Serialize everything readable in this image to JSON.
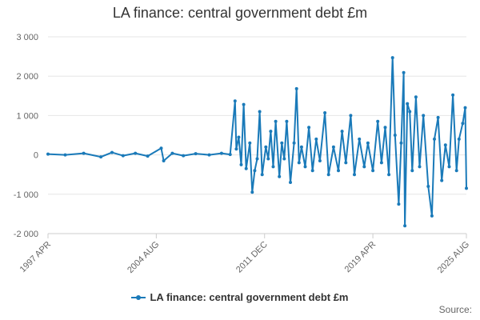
{
  "chart_data": {
    "type": "line",
    "title": "LA finance: central government debt £m",
    "xlabel": "",
    "ylabel": "",
    "x_range": [
      "1997-04",
      "2025-08"
    ],
    "x_ticks": [
      "1997 APR",
      "2004 AUG",
      "2011 DEC",
      "2019 APR",
      "2025 AUG"
    ],
    "ylim": [
      -2000,
      3000
    ],
    "y_ticks": [
      -2000,
      -1000,
      0,
      1000,
      2000,
      3000
    ],
    "y_tick_labels": [
      "-2 000",
      "-1 000",
      "0",
      "1 000",
      "2 000",
      "3 000"
    ],
    "grid": "horizontal",
    "legend": "bottom",
    "series": [
      {
        "name": "LA finance: central government debt £m",
        "color": "#1a7ab9",
        "points": [
          [
            "1997-04",
            20
          ],
          [
            "1998-06",
            0
          ],
          [
            "1999-09",
            40
          ],
          [
            "2000-11",
            -50
          ],
          [
            "2001-08",
            60
          ],
          [
            "2002-05",
            -20
          ],
          [
            "2003-03",
            40
          ],
          [
            "2004-01",
            -30
          ],
          [
            "2004-12",
            170
          ],
          [
            "2005-02",
            -150
          ],
          [
            "2005-09",
            40
          ],
          [
            "2006-06",
            -20
          ],
          [
            "2007-04",
            30
          ],
          [
            "2008-03",
            0
          ],
          [
            "2009-01",
            40
          ],
          [
            "2009-08",
            10
          ],
          [
            "2009-12",
            1370
          ],
          [
            "2010-01",
            150
          ],
          [
            "2010-03",
            450
          ],
          [
            "2010-05",
            -250
          ],
          [
            "2010-07",
            1280
          ],
          [
            "2010-09",
            -350
          ],
          [
            "2010-12",
            300
          ],
          [
            "2011-02",
            -950
          ],
          [
            "2011-04",
            -400
          ],
          [
            "2011-06",
            -100
          ],
          [
            "2011-08",
            1100
          ],
          [
            "2011-10",
            -500
          ],
          [
            "2012-01",
            200
          ],
          [
            "2012-03",
            -100
          ],
          [
            "2012-05",
            600
          ],
          [
            "2012-07",
            -300
          ],
          [
            "2012-09",
            850
          ],
          [
            "2012-12",
            -550
          ],
          [
            "2013-02",
            300
          ],
          [
            "2013-04",
            -100
          ],
          [
            "2013-06",
            850
          ],
          [
            "2013-09",
            -700
          ],
          [
            "2013-12",
            300
          ],
          [
            "2014-02",
            1680
          ],
          [
            "2014-04",
            -200
          ],
          [
            "2014-06",
            200
          ],
          [
            "2014-09",
            -300
          ],
          [
            "2014-12",
            700
          ],
          [
            "2015-03",
            -400
          ],
          [
            "2015-06",
            400
          ],
          [
            "2015-09",
            -150
          ],
          [
            "2016-01",
            1070
          ],
          [
            "2016-04",
            -500
          ],
          [
            "2016-08",
            200
          ],
          [
            "2016-12",
            -400
          ],
          [
            "2017-03",
            600
          ],
          [
            "2017-06",
            -200
          ],
          [
            "2017-10",
            1000
          ],
          [
            "2018-01",
            -500
          ],
          [
            "2018-05",
            400
          ],
          [
            "2018-09",
            -300
          ],
          [
            "2018-12",
            300
          ],
          [
            "2019-04",
            -400
          ],
          [
            "2019-08",
            850
          ],
          [
            "2019-11",
            -200
          ],
          [
            "2020-02",
            700
          ],
          [
            "2020-05",
            -500
          ],
          [
            "2020-08",
            2470
          ],
          [
            "2020-10",
            500
          ],
          [
            "2021-01",
            -1250
          ],
          [
            "2021-03",
            300
          ],
          [
            "2021-05",
            2090
          ],
          [
            "2021-06",
            -1800
          ],
          [
            "2021-08",
            1300
          ],
          [
            "2021-10",
            1100
          ],
          [
            "2021-12",
            -400
          ],
          [
            "2022-03",
            1470
          ],
          [
            "2022-06",
            -300
          ],
          [
            "2022-09",
            1000
          ],
          [
            "2023-01",
            -800
          ],
          [
            "2023-04",
            -1550
          ],
          [
            "2023-06",
            400
          ],
          [
            "2023-09",
            950
          ],
          [
            "2023-12",
            -650
          ],
          [
            "2024-03",
            250
          ],
          [
            "2024-06",
            -300
          ],
          [
            "2024-09",
            1520
          ],
          [
            "2024-12",
            -400
          ],
          [
            "2025-02",
            400
          ],
          [
            "2025-05",
            800
          ],
          [
            "2025-07",
            1200
          ],
          [
            "2025-08",
            -850
          ]
        ]
      }
    ],
    "source_label": "Source:"
  }
}
